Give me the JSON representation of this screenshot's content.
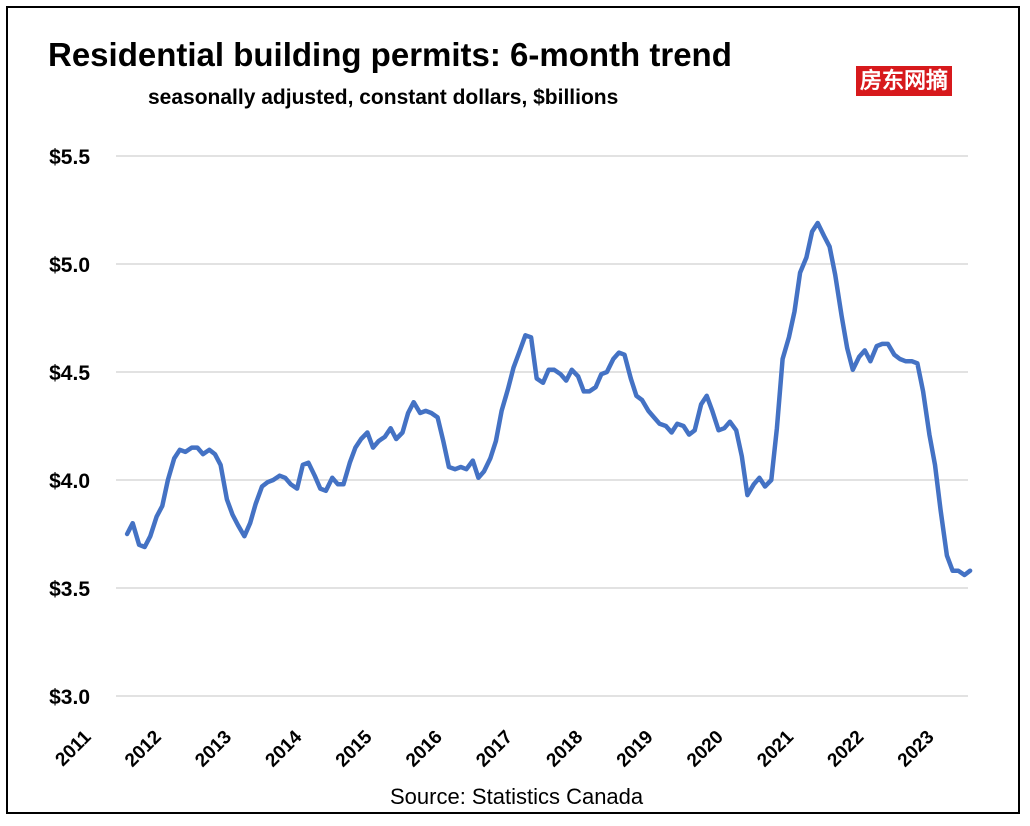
{
  "chart_data": {
    "type": "line",
    "title": "Residential building permits: 6-month trend",
    "subtitle": "seasonally adjusted, constant dollars, $billions",
    "source": "Source:  Statistics Canada",
    "watermark": "房东网摘",
    "ylim": [
      3.0,
      5.5
    ],
    "xlim": [
      2011,
      2023.5
    ],
    "yticks": [
      "$3.0",
      "$3.5",
      "$4.0",
      "$4.5",
      "$5.0",
      "$5.5"
    ],
    "ytick_values": [
      3.0,
      3.5,
      4.0,
      4.5,
      5.0,
      5.5
    ],
    "xticks": [
      "2011",
      "2012",
      "2013",
      "2014",
      "2015",
      "2016",
      "2017",
      "2018",
      "2019",
      "2020",
      "2021",
      "2022",
      "2023"
    ],
    "xtick_values": [
      2011,
      2012,
      2013,
      2014,
      2015,
      2016,
      2017,
      2018,
      2019,
      2020,
      2021,
      2022,
      2023
    ],
    "grid": true,
    "line_color": "#4472c4",
    "series": [
      {
        "x": [
          2011.5,
          2011.58,
          2011.67,
          2011.75,
          2011.83,
          2011.92,
          2012.0,
          2012.08,
          2012.17,
          2012.25,
          2012.33,
          2012.42,
          2012.5,
          2012.58,
          2012.67,
          2012.75,
          2012.83,
          2012.92,
          2013.0,
          2013.08,
          2013.17,
          2013.25,
          2013.33,
          2013.42,
          2013.5,
          2013.58,
          2013.67,
          2013.75,
          2013.83,
          2013.92,
          2014.0,
          2014.08,
          2014.17,
          2014.25,
          2014.33,
          2014.42,
          2014.5,
          2014.58,
          2014.67,
          2014.75,
          2014.83,
          2014.92,
          2015.0,
          2015.08,
          2015.17,
          2015.25,
          2015.33,
          2015.42,
          2015.5,
          2015.58,
          2015.67,
          2015.75,
          2015.83,
          2015.92,
          2016.0,
          2016.08,
          2016.17,
          2016.25,
          2016.33,
          2016.42,
          2016.5,
          2016.58,
          2016.67,
          2016.75,
          2016.83,
          2016.92,
          2017.0,
          2017.08,
          2017.17,
          2017.25,
          2017.33,
          2017.42,
          2017.5,
          2017.58,
          2017.67,
          2017.75,
          2017.83,
          2017.92,
          2018.0,
          2018.08,
          2018.17,
          2018.25,
          2018.33,
          2018.42,
          2018.5,
          2018.58,
          2018.67,
          2018.75,
          2018.83,
          2018.92,
          2019.0,
          2019.08,
          2019.17,
          2019.25,
          2019.33,
          2019.42,
          2019.5,
          2019.58,
          2019.67,
          2019.75,
          2019.83,
          2019.92,
          2020.0,
          2020.08,
          2020.17,
          2020.25,
          2020.33,
          2020.42,
          2020.5,
          2020.58,
          2020.67,
          2020.75,
          2020.83,
          2020.92,
          2021.0,
          2021.08,
          2021.17,
          2021.25,
          2021.33,
          2021.42,
          2021.5,
          2021.58,
          2021.67,
          2021.75,
          2021.83,
          2021.92,
          2022.0,
          2022.08,
          2022.17,
          2022.25,
          2022.33,
          2022.42,
          2022.5,
          2022.58,
          2022.67,
          2022.75,
          2022.83,
          2022.92,
          2023.0,
          2023.08,
          2023.17,
          2023.25,
          2023.33,
          2023.42,
          2023.5
        ],
        "y": [
          3.75,
          3.8,
          3.7,
          3.69,
          3.74,
          3.83,
          3.88,
          4.0,
          4.1,
          4.14,
          4.13,
          4.15,
          4.15,
          4.12,
          4.14,
          4.12,
          4.07,
          3.91,
          3.84,
          3.79,
          3.74,
          3.8,
          3.89,
          3.97,
          3.99,
          4.0,
          4.02,
          4.01,
          3.98,
          3.96,
          4.07,
          4.08,
          4.02,
          3.96,
          3.95,
          4.01,
          3.98,
          3.98,
          4.08,
          4.15,
          4.19,
          4.22,
          4.15,
          4.18,
          4.2,
          4.24,
          4.19,
          4.22,
          4.31,
          4.36,
          4.31,
          4.32,
          4.31,
          4.29,
          4.18,
          4.06,
          4.05,
          4.06,
          4.05,
          4.09,
          4.01,
          4.04,
          4.1,
          4.18,
          4.32,
          4.42,
          4.52,
          4.59,
          4.67,
          4.66,
          4.47,
          4.45,
          4.51,
          4.51,
          4.49,
          4.46,
          4.51,
          4.48,
          4.41,
          4.41,
          4.43,
          4.49,
          4.5,
          4.56,
          4.59,
          4.58,
          4.47,
          4.39,
          4.37,
          4.32,
          4.29,
          4.26,
          4.25,
          4.22,
          4.26,
          4.25,
          4.21,
          4.23,
          4.35,
          4.39,
          4.32,
          4.23,
          4.24,
          4.27,
          4.23,
          4.11,
          3.93,
          3.98,
          4.01,
          3.97,
          4.0,
          4.24,
          4.56,
          4.66,
          4.78,
          4.96,
          5.03,
          5.15,
          5.19,
          5.13,
          5.08,
          4.95,
          4.76,
          4.61,
          4.51,
          4.57,
          4.6,
          4.55,
          4.62,
          4.63,
          4.63,
          4.58,
          4.56,
          4.55,
          4.55,
          4.54,
          4.41,
          4.21,
          4.07,
          3.86,
          3.65,
          3.58,
          3.58,
          3.56,
          3.58
        ]
      }
    ]
  }
}
